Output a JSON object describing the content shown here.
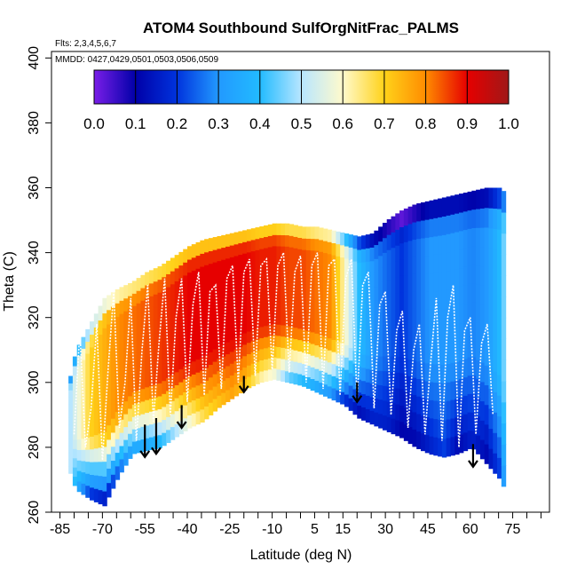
{
  "chart_data": {
    "type": "heatmap",
    "title": "ATOM4 Southbound SulfOrgNitFrac_PALMS",
    "flights_note": "Flts: 2,3,4,5,6,7",
    "dates_note": "MMDD: 0427,0429,0501,0503,0506,0509",
    "xlabel": "Latitude (deg N)",
    "ylabel": "Theta (C)",
    "xlim": [
      -88,
      88
    ],
    "ylim": [
      260,
      402
    ],
    "x_tick_labels": [
      "-85",
      "-70",
      "-55",
      "-40",
      "-25",
      "-10",
      "5",
      "15",
      "30",
      "45",
      "60",
      "75"
    ],
    "x_tick_values": [
      -85,
      -70,
      -55,
      -40,
      -25,
      -10,
      5,
      15,
      30,
      45,
      60,
      75
    ],
    "y_tick_labels": [
      "260",
      "280",
      "300",
      "320",
      "340",
      "360",
      "380",
      "400"
    ],
    "y_tick_values": [
      260,
      280,
      300,
      320,
      340,
      360,
      380,
      400
    ],
    "colorbar": {
      "min": 0.0,
      "max": 1.0,
      "tick_labels": [
        "0.0",
        "0.1",
        "0.2",
        "0.3",
        "0.4",
        "0.5",
        "0.6",
        "0.7",
        "0.8",
        "0.9",
        "1.0"
      ],
      "colors": [
        "#7a1ee8",
        "#0000a8",
        "#0033dd",
        "#2299ff",
        "#22bbff",
        "#b8e6ff",
        "#fffacc",
        "#ffd21a",
        "#ff8c00",
        "#e60000",
        "#a01818"
      ]
    },
    "field_envelope": {
      "latitude": [
        -82,
        -80,
        -75,
        -70,
        -65,
        -60,
        -55,
        -50,
        -45,
        -40,
        -35,
        -30,
        -25,
        -20,
        -15,
        -10,
        -5,
        0,
        5,
        10,
        15,
        20,
        25,
        30,
        35,
        40,
        45,
        50,
        55,
        60,
        65,
        70,
        72
      ],
      "theta_top": [
        302,
        310,
        318,
        326,
        329,
        331,
        334,
        336,
        339,
        342,
        344,
        345,
        346,
        347,
        348,
        349,
        349,
        348,
        348,
        347,
        346,
        345,
        346,
        350,
        353,
        355,
        356,
        357,
        358,
        359,
        360,
        360,
        358
      ],
      "theta_bottom": [
        272,
        267,
        264,
        262,
        271,
        278,
        279,
        280,
        283,
        286,
        288,
        292,
        295,
        298,
        300,
        301,
        300,
        299,
        297,
        295,
        293,
        289,
        287,
        285,
        283,
        280,
        278,
        277,
        278,
        280,
        275,
        270,
        266
      ],
      "value_mid": [
        0.5,
        0.55,
        0.7,
        0.75,
        0.8,
        0.82,
        0.84,
        0.86,
        0.88,
        0.9,
        0.9,
        0.9,
        0.9,
        0.9,
        0.88,
        0.88,
        0.85,
        0.85,
        0.82,
        0.8,
        0.6,
        0.4,
        0.3,
        0.25,
        0.2,
        0.25,
        0.3,
        0.3,
        0.3,
        0.28,
        0.3,
        0.4,
        0.5
      ],
      "value_low": [
        0.5,
        0.35,
        0.15,
        0.1,
        0.2,
        0.3,
        0.3,
        0.35,
        0.45,
        0.55,
        0.65,
        0.7,
        0.75,
        0.7,
        0.6,
        0.55,
        0.4,
        0.35,
        0.3,
        0.25,
        0.15,
        0.1,
        0.15,
        0.15,
        0.1,
        0.1,
        0.15,
        0.2,
        0.1,
        0.15,
        0.1,
        0.2,
        0.4
      ]
    },
    "profile_arrows": {
      "latitude": [
        -55,
        -51,
        -42,
        -20,
        20,
        61
      ],
      "theta_top": [
        287,
        289,
        293,
        302,
        300,
        281
      ],
      "theta_bottom": [
        277,
        278,
        286,
        297,
        294,
        274
      ]
    },
    "flight_track": {
      "latitude": [
        -80,
        -78,
        -76,
        -74,
        -72,
        -70,
        -68,
        -66,
        -64,
        -62,
        -60,
        -58,
        -56,
        -54,
        -52,
        -50,
        -48,
        -46,
        -44,
        -42,
        -40,
        -38,
        -36,
        -34,
        -32,
        -30,
        -28,
        -26,
        -24,
        -22,
        -20,
        -18,
        -16,
        -14,
        -12,
        -10,
        -8,
        -6,
        -4,
        -2,
        0,
        2,
        4,
        6,
        8,
        10,
        12,
        14,
        16,
        18,
        20,
        22,
        24,
        26,
        28,
        30,
        32,
        34,
        36,
        38,
        40,
        42,
        44,
        46,
        48,
        50,
        52,
        54,
        56,
        58,
        60,
        62,
        64,
        66,
        68
      ],
      "theta": [
        284,
        316,
        280,
        292,
        318,
        276,
        304,
        328,
        286,
        300,
        326,
        282,
        310,
        330,
        288,
        312,
        332,
        290,
        320,
        332,
        294,
        324,
        334,
        296,
        328,
        330,
        298,
        332,
        336,
        300,
        334,
        338,
        302,
        336,
        338,
        304,
        336,
        340,
        303,
        334,
        339,
        300,
        336,
        340,
        298,
        336,
        338,
        296,
        332,
        338,
        294,
        330,
        334,
        292,
        324,
        328,
        290,
        316,
        322,
        286,
        310,
        318,
        284,
        306,
        326,
        282,
        320,
        330,
        280,
        316,
        320,
        284,
        312,
        318,
        290
      ]
    }
  }
}
